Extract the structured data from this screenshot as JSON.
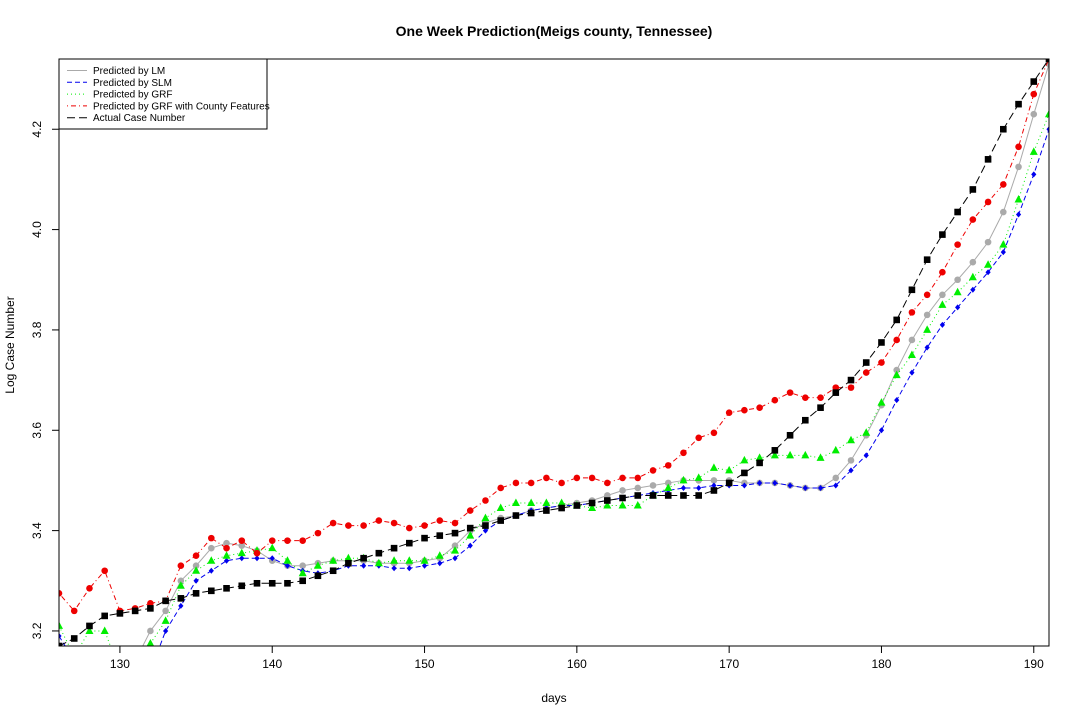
{
  "chart_data": {
    "type": "line",
    "title": "One Week Prediction(Meigs county, Tennessee)",
    "xlabel": "days",
    "ylabel": "Log Case Number",
    "xlim": [
      126,
      191
    ],
    "ylim": [
      3.17,
      4.34
    ],
    "xticks": [
      130,
      140,
      150,
      160,
      170,
      180,
      190
    ],
    "yticks": [
      3.2,
      3.4,
      3.6,
      3.8,
      4.0,
      4.2
    ],
    "x_tick_labels": [
      "130",
      "140",
      "150",
      "160",
      "170",
      "180",
      "190"
    ],
    "y_tick_labels": [
      "3.2",
      "3.4",
      "3.6",
      "3.8",
      "4.0",
      "4.2"
    ],
    "grid": false,
    "legend_position": "top-left",
    "x": [
      126,
      127,
      128,
      129,
      130,
      131,
      132,
      133,
      134,
      135,
      136,
      137,
      138,
      139,
      140,
      141,
      142,
      143,
      144,
      145,
      146,
      147,
      148,
      149,
      150,
      151,
      152,
      153,
      154,
      155,
      156,
      157,
      158,
      159,
      160,
      161,
      162,
      163,
      164,
      165,
      166,
      167,
      168,
      169,
      170,
      171,
      172,
      173,
      174,
      175,
      176,
      177,
      178,
      179,
      180,
      181,
      182,
      183,
      184,
      185,
      186,
      187,
      188,
      189,
      190,
      191
    ],
    "series": [
      {
        "name": "Predicted by LM",
        "color": "#aaaaaa",
        "dash": "solid",
        "marker": "circle",
        "values": [
          3.15,
          3.12,
          3.12,
          3.13,
          3.13,
          3.14,
          3.2,
          3.24,
          3.3,
          3.33,
          3.365,
          3.375,
          3.37,
          3.36,
          3.34,
          3.33,
          3.33,
          3.335,
          3.34,
          3.34,
          3.34,
          3.335,
          3.335,
          3.335,
          3.34,
          3.345,
          3.37,
          3.4,
          3.415,
          3.425,
          3.43,
          3.44,
          3.445,
          3.45,
          3.455,
          3.46,
          3.47,
          3.48,
          3.485,
          3.49,
          3.495,
          3.5,
          3.5,
          3.5,
          3.5,
          3.495,
          3.495,
          3.495,
          3.49,
          3.485,
          3.485,
          3.505,
          3.54,
          3.59,
          3.65,
          3.72,
          3.78,
          3.83,
          3.87,
          3.9,
          3.935,
          3.975,
          4.035,
          4.125,
          4.23,
          4.33
        ]
      },
      {
        "name": "Predicted by SLM",
        "color": "#0000ee",
        "dash": "dash",
        "marker": "diamond",
        "values": [
          3.19,
          3.14,
          3.12,
          3.12,
          3.12,
          3.12,
          3.12,
          3.2,
          3.25,
          3.3,
          3.32,
          3.34,
          3.345,
          3.345,
          3.345,
          3.33,
          3.32,
          3.315,
          3.32,
          3.33,
          3.33,
          3.33,
          3.325,
          3.325,
          3.33,
          3.335,
          3.345,
          3.37,
          3.4,
          3.42,
          3.43,
          3.44,
          3.445,
          3.45,
          3.45,
          3.455,
          3.46,
          3.465,
          3.47,
          3.475,
          3.48,
          3.485,
          3.485,
          3.49,
          3.49,
          3.49,
          3.495,
          3.495,
          3.49,
          3.485,
          3.485,
          3.49,
          3.52,
          3.55,
          3.6,
          3.66,
          3.715,
          3.765,
          3.81,
          3.845,
          3.88,
          3.915,
          3.955,
          4.03,
          4.11,
          4.2
        ]
      },
      {
        "name": "Predicted by GRF",
        "color": "#00ee00",
        "dash": "dot",
        "marker": "triangle",
        "values": [
          3.21,
          3.15,
          3.2,
          3.2,
          3.12,
          3.12,
          3.175,
          3.22,
          3.29,
          3.32,
          3.34,
          3.35,
          3.355,
          3.36,
          3.365,
          3.34,
          3.315,
          3.33,
          3.34,
          3.345,
          3.345,
          3.335,
          3.34,
          3.34,
          3.34,
          3.35,
          3.36,
          3.39,
          3.425,
          3.445,
          3.455,
          3.455,
          3.455,
          3.455,
          3.45,
          3.445,
          3.45,
          3.45,
          3.45,
          3.47,
          3.485,
          3.5,
          3.505,
          3.525,
          3.52,
          3.54,
          3.545,
          3.55,
          3.55,
          3.55,
          3.545,
          3.56,
          3.58,
          3.595,
          3.655,
          3.71,
          3.75,
          3.8,
          3.85,
          3.875,
          3.905,
          3.93,
          3.97,
          4.06,
          4.155,
          4.23
        ]
      },
      {
        "name": "Predicted by GRF with County Features",
        "color": "#ee0000",
        "dash": "dotdash",
        "marker": "circle",
        "values": [
          3.275,
          3.24,
          3.285,
          3.32,
          3.24,
          3.245,
          3.255,
          3.26,
          3.33,
          3.35,
          3.385,
          3.365,
          3.38,
          3.355,
          3.38,
          3.38,
          3.38,
          3.395,
          3.415,
          3.41,
          3.41,
          3.42,
          3.415,
          3.405,
          3.41,
          3.42,
          3.415,
          3.44,
          3.46,
          3.485,
          3.495,
          3.495,
          3.505,
          3.495,
          3.505,
          3.505,
          3.495,
          3.505,
          3.505,
          3.52,
          3.53,
          3.555,
          3.585,
          3.595,
          3.635,
          3.64,
          3.645,
          3.66,
          3.675,
          3.665,
          3.665,
          3.685,
          3.685,
          3.715,
          3.735,
          3.78,
          3.835,
          3.87,
          3.915,
          3.97,
          4.02,
          4.055,
          4.09,
          4.165,
          4.27,
          4.34
        ]
      },
      {
        "name": "Actual Case Number",
        "color": "#000000",
        "dash": "longdash",
        "marker": "square",
        "values": [
          3.17,
          3.185,
          3.21,
          3.23,
          3.235,
          3.24,
          3.245,
          3.26,
          3.265,
          3.275,
          3.28,
          3.285,
          3.29,
          3.295,
          3.295,
          3.295,
          3.3,
          3.31,
          3.32,
          3.335,
          3.345,
          3.355,
          3.365,
          3.375,
          3.385,
          3.39,
          3.395,
          3.405,
          3.41,
          3.42,
          3.43,
          3.435,
          3.44,
          3.445,
          3.45,
          3.455,
          3.46,
          3.465,
          3.47,
          3.47,
          3.47,
          3.47,
          3.47,
          3.48,
          3.495,
          3.515,
          3.535,
          3.56,
          3.59,
          3.62,
          3.645,
          3.675,
          3.7,
          3.735,
          3.775,
          3.82,
          3.88,
          3.94,
          3.99,
          4.035,
          4.08,
          4.14,
          4.2,
          4.25,
          4.295,
          4.34
        ]
      }
    ]
  }
}
